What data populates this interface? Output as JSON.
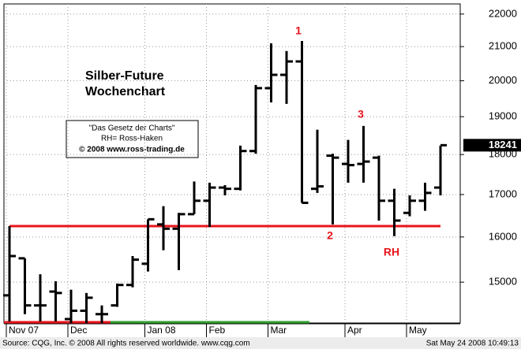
{
  "chart_data": {
    "type": "ohlc",
    "title": "Silber-Future",
    "subtitle": "Wochenchart",
    "notes": [
      "\"Das Gesetz der Charts\"",
      "RH= Ross-Haken",
      "© 2008 www.ross-trading.de"
    ],
    "x": [
      "Nov 07",
      null,
      null,
      null,
      "Dec",
      null,
      null,
      null,
      null,
      "Jan 08",
      null,
      null,
      null,
      "Feb",
      null,
      null,
      null,
      "Mar",
      null,
      null,
      null,
      null,
      "Apr",
      null,
      null,
      null,
      "May",
      null,
      null
    ],
    "open": [
      14720,
      15520,
      14510,
      14800,
      14230,
      14400,
      14330,
      14510,
      14940,
      15400,
      16290,
      16190,
      16530,
      16850,
      17170,
      17140,
      18090,
      19790,
      20170,
      20560,
      17140,
      17970,
      17760,
      17760,
      17920,
      16850,
      16560,
      16850,
      17170
    ],
    "high": [
      16250,
      15520,
      15170,
      15020,
      14840,
      14770,
      14510,
      14970,
      15570,
      16410,
      16720,
      16560,
      17320,
      17290,
      17230,
      18230,
      19880,
      21100,
      20870,
      21170,
      18650,
      18020,
      18380,
      18750,
      17970,
      17140,
      16980,
      17290,
      18230
    ],
    "low": [
      14180,
      14330,
      14180,
      14180,
      14150,
      14150,
      14150,
      14480,
      14890,
      15230,
      15700,
      15260,
      16530,
      16230,
      16980,
      17100,
      18020,
      19390,
      19350,
      16800,
      17040,
      16290,
      17290,
      17290,
      16380,
      16020,
      16480,
      16610,
      16980
    ],
    "close": [
      15570,
      14510,
      14510,
      14770,
      14400,
      14670,
      14330,
      14940,
      15490,
      16410,
      16190,
      16530,
      16850,
      17170,
      17140,
      18090,
      19790,
      20170,
      20560,
      16800,
      17200,
      17920,
      17730,
      17820,
      16850,
      16380,
      16850,
      17040,
      18241
    ],
    "color": "#000000",
    "last_price": 18241,
    "hline": 16250,
    "hline_color": "#e8141b",
    "annotations": [
      "1",
      "2",
      "3",
      "RH"
    ],
    "annotation_color": "#e8141b",
    "ylim": [
      14150,
      22320
    ],
    "yticks": [
      15000,
      16000,
      17000,
      18000,
      19000,
      20000,
      21000,
      22000
    ],
    "log_scale": true,
    "grid": true,
    "footer_left": "Source: CQG, Inc. © 2008 All rights reserved worldwide. www.cqg.com",
    "footer_right": "Sat May 24 2008 10:49:13"
  }
}
